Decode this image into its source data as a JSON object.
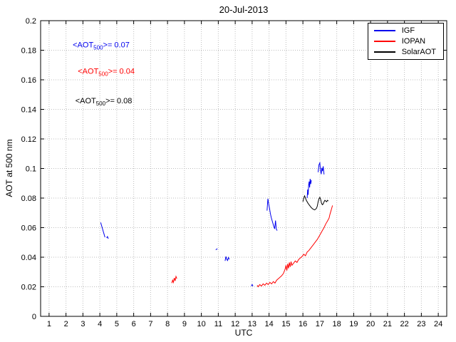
{
  "chart_data": {
    "type": "line",
    "title": "20-Jul-2013",
    "xlabel": "UTC",
    "ylabel": "AOT at 500 nm",
    "xlim": [
      0.5,
      24.5
    ],
    "ylim": [
      0,
      0.2
    ],
    "grid": true,
    "legend_position": "top-right",
    "x_ticks": [
      1,
      2,
      3,
      4,
      5,
      6,
      7,
      8,
      9,
      10,
      11,
      12,
      13,
      14,
      15,
      16,
      17,
      18,
      19,
      20,
      21,
      22,
      23,
      24
    ],
    "y_ticks": [
      0,
      0.02,
      0.04,
      0.06,
      0.08,
      0.1,
      0.12,
      0.14,
      0.16,
      0.18,
      0.2
    ],
    "y_tick_labels": [
      "0",
      "0.02",
      "0.04",
      "0.06",
      "0.08",
      "0.1",
      "0.12",
      "0.14",
      "0.16",
      "0.18",
      "0.2"
    ],
    "series": [
      {
        "name": "IGF",
        "color": "#0000ee",
        "mean_aot_500": 0.07,
        "segments": [
          [
            [
              4.05,
              0.0635
            ],
            [
              4.1,
              0.0615
            ],
            [
              4.15,
              0.0595
            ],
            [
              4.2,
              0.0575
            ],
            [
              4.25,
              0.0555
            ],
            [
              4.3,
              0.0535
            ]
          ],
          [
            [
              4.4,
              0.053
            ],
            [
              4.45,
              0.054
            ],
            [
              4.5,
              0.0525
            ]
          ],
          [
            [
              10.85,
              0.045
            ],
            [
              10.95,
              0.0458
            ]
          ],
          [
            [
              11.4,
              0.0375
            ],
            [
              11.45,
              0.0405
            ],
            [
              11.5,
              0.0385
            ],
            [
              11.55,
              0.0378
            ],
            [
              11.6,
              0.0398
            ],
            [
              11.65,
              0.0385
            ]
          ],
          [
            [
              12.95,
              0.0205
            ],
            [
              13.0,
              0.0215
            ],
            [
              13.05,
              0.0205
            ]
          ],
          [
            [
              13.88,
              0.0715
            ],
            [
              13.93,
              0.0795
            ],
            [
              13.98,
              0.076
            ],
            [
              14.03,
              0.073
            ],
            [
              14.08,
              0.0695
            ],
            [
              14.13,
              0.0668
            ],
            [
              14.18,
              0.0648
            ],
            [
              14.23,
              0.0628
            ],
            [
              14.28,
              0.0608
            ],
            [
              14.33,
              0.0592
            ],
            [
              14.38,
              0.0648
            ],
            [
              14.43,
              0.059
            ],
            [
              14.48,
              0.058
            ]
          ],
          [
            [
              16.25,
              0.08
            ],
            [
              16.28,
              0.0858
            ],
            [
              16.31,
              0.0822
            ],
            [
              16.34,
              0.089
            ],
            [
              16.37,
              0.0912
            ],
            [
              16.4,
              0.0872
            ],
            [
              16.43,
              0.093
            ],
            [
              16.46,
              0.0895
            ],
            [
              16.5,
              0.0922
            ]
          ],
          [
            [
              16.9,
              0.0975
            ],
            [
              16.95,
              0.1025
            ],
            [
              17.0,
              0.1038
            ],
            [
              17.04,
              0.099
            ],
            [
              17.08,
              0.0962
            ],
            [
              17.12,
              0.1005
            ],
            [
              17.16,
              0.0982
            ],
            [
              17.2,
              0.1015
            ],
            [
              17.25,
              0.096
            ]
          ]
        ]
      },
      {
        "name": "IOPAN",
        "color": "#ff0000",
        "mean_aot_500": 0.04,
        "segments": [
          [
            [
              8.25,
              0.0225
            ],
            [
              8.3,
              0.0245
            ],
            [
              8.35,
              0.023
            ],
            [
              8.4,
              0.026
            ],
            [
              8.45,
              0.024
            ],
            [
              8.5,
              0.027
            ],
            [
              8.55,
              0.0255
            ]
          ],
          [
            [
              13.3,
              0.021
            ],
            [
              13.35,
              0.02
            ],
            [
              13.45,
              0.0215
            ],
            [
              13.55,
              0.0205
            ],
            [
              13.65,
              0.022
            ],
            [
              13.75,
              0.021
            ],
            [
              13.85,
              0.0225
            ],
            [
              13.95,
              0.0215
            ],
            [
              14.05,
              0.023
            ],
            [
              14.15,
              0.022
            ],
            [
              14.25,
              0.0235
            ],
            [
              14.35,
              0.0225
            ],
            [
              14.45,
              0.0245
            ],
            [
              14.55,
              0.0255
            ],
            [
              14.65,
              0.0265
            ],
            [
              14.75,
              0.0275
            ],
            [
              14.85,
              0.029
            ],
            [
              14.95,
              0.032
            ],
            [
              15.0,
              0.0345
            ],
            [
              15.05,
              0.031
            ],
            [
              15.1,
              0.0355
            ],
            [
              15.15,
              0.0325
            ],
            [
              15.2,
              0.0365
            ],
            [
              15.25,
              0.0335
            ],
            [
              15.3,
              0.037
            ],
            [
              15.35,
              0.0345
            ],
            [
              15.45,
              0.036
            ],
            [
              15.55,
              0.0375
            ],
            [
              15.65,
              0.0365
            ],
            [
              15.75,
              0.0385
            ],
            [
              15.85,
              0.0395
            ],
            [
              15.95,
              0.0405
            ],
            [
              16.05,
              0.042
            ],
            [
              16.15,
              0.041
            ],
            [
              16.25,
              0.0435
            ],
            [
              16.35,
              0.0445
            ],
            [
              16.45,
              0.046
            ],
            [
              16.55,
              0.0475
            ],
            [
              16.65,
              0.049
            ],
            [
              16.75,
              0.0505
            ],
            [
              16.85,
              0.052
            ],
            [
              16.95,
              0.054
            ],
            [
              17.05,
              0.056
            ],
            [
              17.15,
              0.058
            ],
            [
              17.25,
              0.06
            ],
            [
              17.35,
              0.0625
            ],
            [
              17.45,
              0.0645
            ],
            [
              17.55,
              0.0665
            ],
            [
              17.6,
              0.069
            ],
            [
              17.65,
              0.071
            ],
            [
              17.7,
              0.073
            ],
            [
              17.75,
              0.075
            ]
          ]
        ]
      },
      {
        "name": "SolarAOT",
        "color": "#000000",
        "mean_aot_500": 0.08,
        "segments": [
          [
            [
              16.0,
              0.0775
            ],
            [
              16.05,
              0.08
            ],
            [
              16.1,
              0.0815
            ],
            [
              16.15,
              0.08
            ],
            [
              16.2,
              0.0785
            ],
            [
              16.3,
              0.0765
            ],
            [
              16.4,
              0.075
            ],
            [
              16.5,
              0.0735
            ],
            [
              16.6,
              0.0725
            ],
            [
              16.7,
              0.072
            ],
            [
              16.8,
              0.073
            ],
            [
              16.85,
              0.0745
            ],
            [
              16.9,
              0.0775
            ],
            [
              16.95,
              0.0795
            ],
            [
              17.0,
              0.0805
            ],
            [
              17.05,
              0.079
            ],
            [
              17.1,
              0.0765
            ],
            [
              17.15,
              0.0755
            ],
            [
              17.2,
              0.076
            ],
            [
              17.25,
              0.0775
            ],
            [
              17.3,
              0.0785
            ],
            [
              17.35,
              0.078
            ],
            [
              17.4,
              0.0775
            ],
            [
              17.45,
              0.0785
            ],
            [
              17.5,
              0.078
            ]
          ]
        ]
      }
    ],
    "annotations": [
      {
        "pre": "<AOT",
        "sub": "500",
        "post": ">= 0.07",
        "color": "#0000ee",
        "x": 2.4,
        "y": 0.182
      },
      {
        "pre": "<AOT",
        "sub": "500",
        "post": ">= 0.04",
        "color": "#ff0000",
        "x": 2.7,
        "y": 0.164
      },
      {
        "pre": "<AOT",
        "sub": "500",
        "post": ">= 0.08",
        "color": "#000000",
        "x": 2.55,
        "y": 0.144
      }
    ]
  }
}
